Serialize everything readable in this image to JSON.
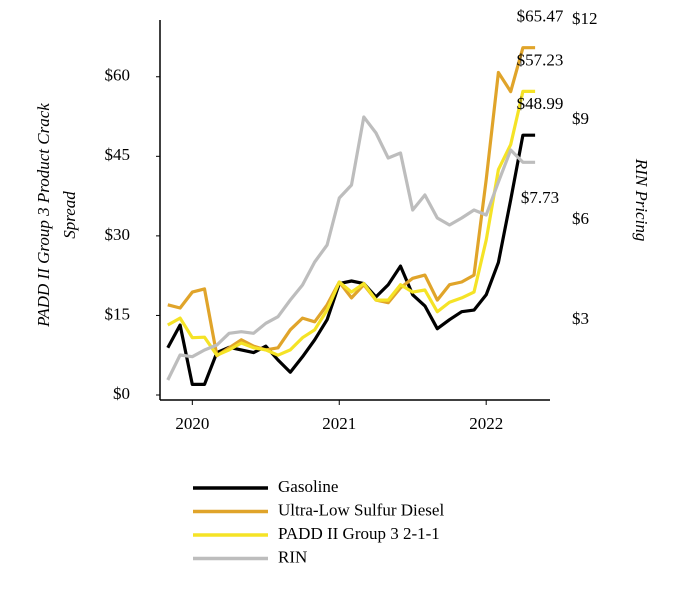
{
  "chart_data": {
    "type": "line",
    "ylabel": [
      "PADD II Group 3 Product Crack",
      "Spread"
    ],
    "y2label": "RIN Pricing",
    "xlim": [
      2019.78,
      2022.55
    ],
    "xticks": [
      2020,
      2021,
      2022
    ],
    "ylim": [
      0,
      70.7
    ],
    "yticks": [
      {
        "value": 0,
        "label": "$0"
      },
      {
        "value": 15,
        "label": "$15"
      },
      {
        "value": 30,
        "label": "$30"
      },
      {
        "value": 45,
        "label": "$45"
      },
      {
        "value": 60,
        "label": "$60"
      }
    ],
    "y2lim": [
      0.75,
      12
    ],
    "y2ticks": [
      {
        "value": 3,
        "label": "$3"
      },
      {
        "value": 6,
        "label": "$6"
      },
      {
        "value": 9,
        "label": "$9"
      },
      {
        "value": 12,
        "label": "$12"
      }
    ],
    "x": [
      2019.833,
      2019.917,
      2020.0,
      2020.083,
      2020.167,
      2020.25,
      2020.333,
      2020.417,
      2020.5,
      2020.583,
      2020.667,
      2020.75,
      2020.833,
      2020.917,
      2021.0,
      2021.083,
      2021.167,
      2021.25,
      2021.333,
      2021.417,
      2021.5,
      2021.583,
      2021.667,
      2021.75,
      2021.833,
      2021.917,
      2022.0,
      2022.083,
      2022.167,
      2022.25,
      2022.333
    ],
    "series": [
      {
        "name": "Gasoline",
        "color": "#000000",
        "values": [
          8.9,
          13.2,
          2,
          2,
          8,
          9,
          8.5,
          8,
          9.2,
          6.6,
          4.3,
          7.2,
          10.4,
          14.2,
          21,
          21.5,
          21,
          18.5,
          20.8,
          24.3,
          18.9,
          16.8,
          12.5,
          14.2,
          15.7,
          16,
          18.9,
          25,
          36.8,
          48.99,
          48.99
        ],
        "end_label": "$48.99"
      },
      {
        "name": "Ultra-Low Sulfur Diesel",
        "color": "#e0a42a",
        "values": [
          17,
          16.4,
          19.4,
          20,
          7.4,
          8.9,
          10.4,
          9.2,
          8.5,
          8.9,
          12.3,
          14.5,
          13.8,
          17,
          21.3,
          18.3,
          20.8,
          17.9,
          17.4,
          20.2,
          22,
          22.6,
          17.9,
          20.8,
          21.3,
          22.6,
          40.6,
          60.8,
          57.2,
          65.47,
          65.47
        ],
        "end_label": "$65.47"
      },
      {
        "name": "PADD II Group 3 2-1-1",
        "color": "#f5e326",
        "values": [
          13.2,
          14.5,
          10.8,
          10.9,
          7.5,
          8.5,
          9.8,
          8.9,
          8.5,
          7.5,
          8.5,
          10.8,
          12.3,
          16,
          21.3,
          19.4,
          21,
          17.9,
          17.9,
          20.8,
          19.4,
          19.8,
          15.7,
          17.5,
          18.3,
          19.4,
          29.2,
          42.5,
          47.2,
          57.23,
          57.23
        ],
        "end_label": "$57.23"
      },
      {
        "name": "RIN",
        "color": "#bdbdbd",
        "axis": "y2",
        "values": [
          1.2,
          1.95,
          1.9,
          2.1,
          2.25,
          2.6,
          2.65,
          2.6,
          2.9,
          3.1,
          3.6,
          4.05,
          4.74,
          5.25,
          6.66,
          7.05,
          9.09,
          8.61,
          7.86,
          8.01,
          6.3,
          6.75,
          6.06,
          5.85,
          6.06,
          6.3,
          6.15,
          7.14,
          8.1,
          7.73,
          7.73
        ],
        "end_label": "$7.73"
      }
    ]
  }
}
